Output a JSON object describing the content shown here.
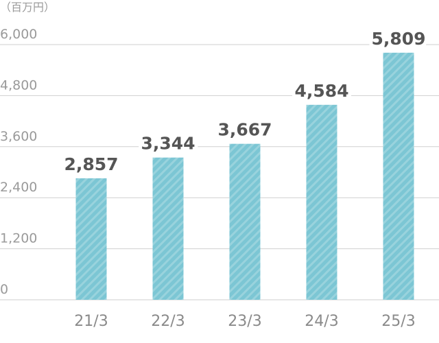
{
  "chart_data": {
    "type": "bar",
    "unit_label": "（百万円）",
    "categories": [
      "21/3",
      "22/3",
      "23/3",
      "24/3",
      "25/3"
    ],
    "values": [
      2857,
      3344,
      3667,
      4584,
      5809
    ],
    "value_labels": [
      "2,857",
      "3,344",
      "3,667",
      "4,584",
      "5,809"
    ],
    "color": "#7cc6d4",
    "ylim": [
      0,
      6000
    ],
    "yticks": [
      0,
      {
        "value": 1200,
        "label": "1,200"
      },
      {
        "value": 2400,
        "label": "2,400"
      },
      {
        "value": 3600,
        "label": "3,600"
      },
      {
        "value": 4800,
        "label": "4,800"
      },
      {
        "value": 6000,
        "label": "6,000"
      }
    ],
    "grid": true
  }
}
